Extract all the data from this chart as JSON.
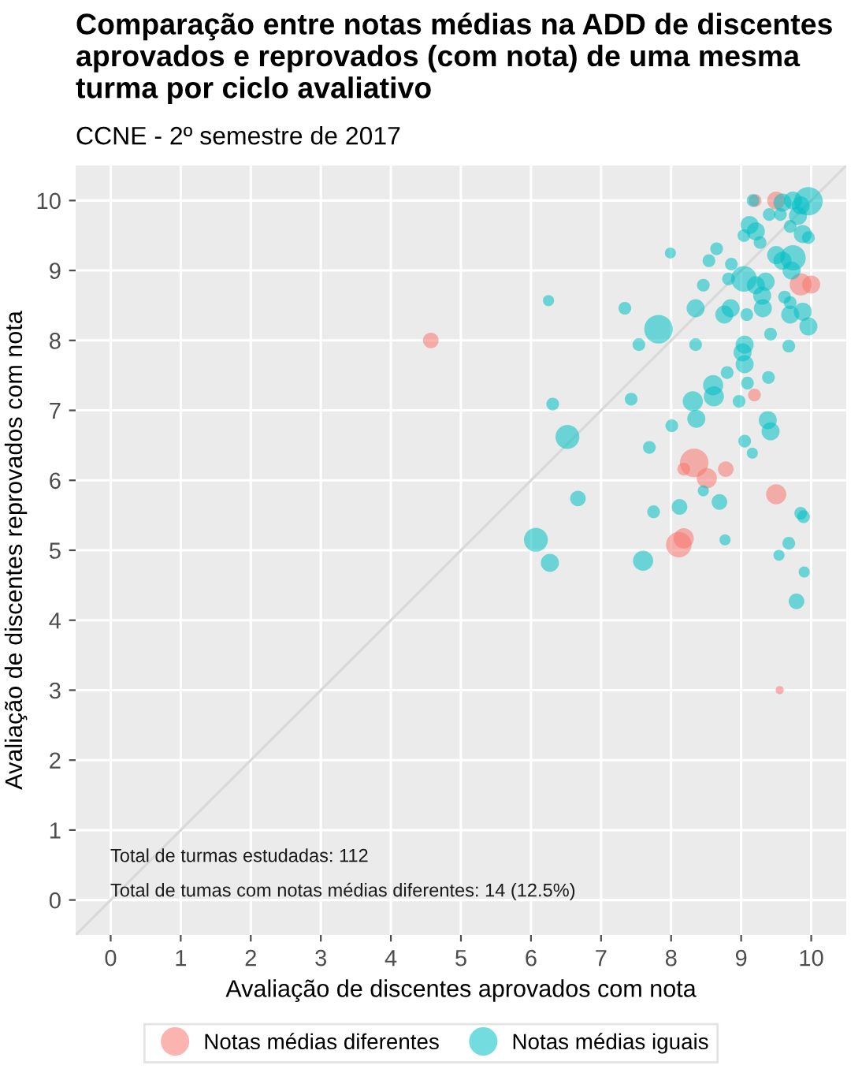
{
  "chart_data": {
    "type": "bubble",
    "title": "Comparação entre notas médias na ADD de discentes aprovados e reprovados (com nota) de uma mesma turma por ciclo avaliativo",
    "subtitle": "CCNE - 2º semestre de 2017",
    "xlabel": "Avaliação de discentes aprovados com nota",
    "ylabel": "Avaliação de discentes reprovados com nota",
    "xlim": [
      -0.5,
      10.5
    ],
    "ylim": [
      -0.5,
      10.5
    ],
    "xticks": [
      0,
      1,
      2,
      3,
      4,
      5,
      6,
      7,
      8,
      9,
      10
    ],
    "yticks": [
      0,
      1,
      2,
      3,
      4,
      5,
      6,
      7,
      8,
      9,
      10
    ],
    "grid": true,
    "legend": "bottom",
    "marker": "circle",
    "annotations": [
      "Total de turmas estudadas: 112",
      "Total de tumas com notas médias diferentes: 14 (12.5%)"
    ],
    "series": [
      {
        "type": "line",
        "marker": "none",
        "color": "#d9d9d9",
        "x": [
          -0.5,
          10.5
        ],
        "values": [
          -0.5,
          10.5
        ]
      },
      {
        "name": "Notas médias diferentes",
        "color": "#f8766d",
        "x": [
          4.57,
          9.2,
          9.5,
          9.85,
          10.0,
          9.19,
          8.33,
          8.18,
          8.51,
          8.78,
          9.5,
          8.18,
          8.11,
          9.55
        ],
        "values": [
          8.0,
          10.0,
          10.0,
          8.8,
          8.8,
          7.22,
          6.25,
          6.16,
          6.03,
          6.16,
          5.8,
          5.17,
          5.08,
          3.0
        ],
        "sizes": [
          0.3,
          0.2,
          0.4,
          0.6,
          0.4,
          0.2,
          1,
          0.2,
          0.5,
          0.3,
          0.5,
          0.5,
          0.8,
          0.08
        ]
      },
      {
        "name": "Notas médias iguais",
        "color": "#00bfc4",
        "x": [
          9.17,
          9.74,
          9.96,
          9.85,
          9.59,
          9.4,
          9.56,
          9.81,
          9.12,
          9.21,
          9.04,
          9.27,
          9.7,
          9.88,
          9.96,
          7.99,
          8.65,
          8.54,
          8.86,
          9.5,
          9.74,
          9.59,
          9.72,
          9.04,
          8.82,
          9.35,
          9.21,
          9.3,
          8.46,
          9.62,
          9.7,
          9.88,
          9.7,
          9.96,
          9.31,
          6.25,
          7.34,
          7.82,
          8.35,
          8.76,
          8.85,
          9.08,
          7.54,
          8.35,
          9.05,
          9.02,
          9.42,
          9.68,
          9.05,
          8.8,
          9.09,
          9.39,
          8.6,
          8.61,
          8.31,
          8.36,
          8.97,
          7.43,
          6.31,
          9.38,
          9.42,
          8.01,
          6.52,
          7.69,
          9.05,
          9.16,
          6.67,
          7.75,
          8.12,
          8.46,
          8.69,
          9.85,
          9.89,
          6.07,
          6.27,
          7.6,
          8.77,
          9.68,
          9.54,
          9.9,
          9.79
        ],
        "values": [
          10.0,
          10.0,
          9.99,
          9.93,
          9.97,
          9.8,
          9.8,
          9.78,
          9.65,
          9.56,
          9.5,
          9.4,
          9.63,
          9.52,
          9.47,
          9.25,
          9.31,
          9.14,
          9.09,
          9.22,
          9.18,
          9.14,
          9.0,
          8.88,
          8.88,
          8.84,
          8.79,
          8.64,
          8.79,
          8.62,
          8.54,
          8.41,
          8.37,
          8.2,
          8.46,
          8.57,
          8.46,
          8.16,
          8.46,
          8.37,
          8.46,
          8.37,
          7.94,
          7.94,
          7.94,
          7.83,
          8.09,
          7.92,
          7.66,
          7.54,
          7.39,
          7.47,
          7.36,
          7.2,
          7.13,
          6.88,
          7.13,
          7.16,
          7.09,
          6.86,
          6.7,
          6.78,
          6.62,
          6.47,
          6.56,
          6.39,
          5.74,
          5.55,
          5.62,
          5.85,
          5.69,
          5.53,
          5.48,
          5.15,
          4.82,
          4.85,
          5.15,
          5.1,
          4.93,
          4.69,
          4.27
        ],
        "sizes": [
          0.2,
          0.4,
          1,
          0.4,
          0.4,
          0.2,
          0.2,
          0.4,
          0.4,
          0.4,
          0.2,
          0.2,
          0.2,
          0.4,
          0.2,
          0.15,
          0.2,
          0.2,
          0.2,
          0.4,
          0.8,
          0.4,
          0.4,
          0.8,
          0.2,
          0.4,
          0.4,
          0.4,
          0.2,
          0.2,
          0.2,
          0.4,
          0.4,
          0.4,
          0.4,
          0.15,
          0.2,
          1,
          0.4,
          0.4,
          0.4,
          0.2,
          0.2,
          0.2,
          0.4,
          0.4,
          0.2,
          0.2,
          0.4,
          0.2,
          0.2,
          0.2,
          0.5,
          0.5,
          0.5,
          0.4,
          0.2,
          0.2,
          0.2,
          0.4,
          0.4,
          0.2,
          0.7,
          0.2,
          0.2,
          0.15,
          0.3,
          0.2,
          0.3,
          0.15,
          0.3,
          0.2,
          0.2,
          0.7,
          0.4,
          0.5,
          0.15,
          0.2,
          0.15,
          0.15,
          0.3
        ]
      }
    ]
  }
}
